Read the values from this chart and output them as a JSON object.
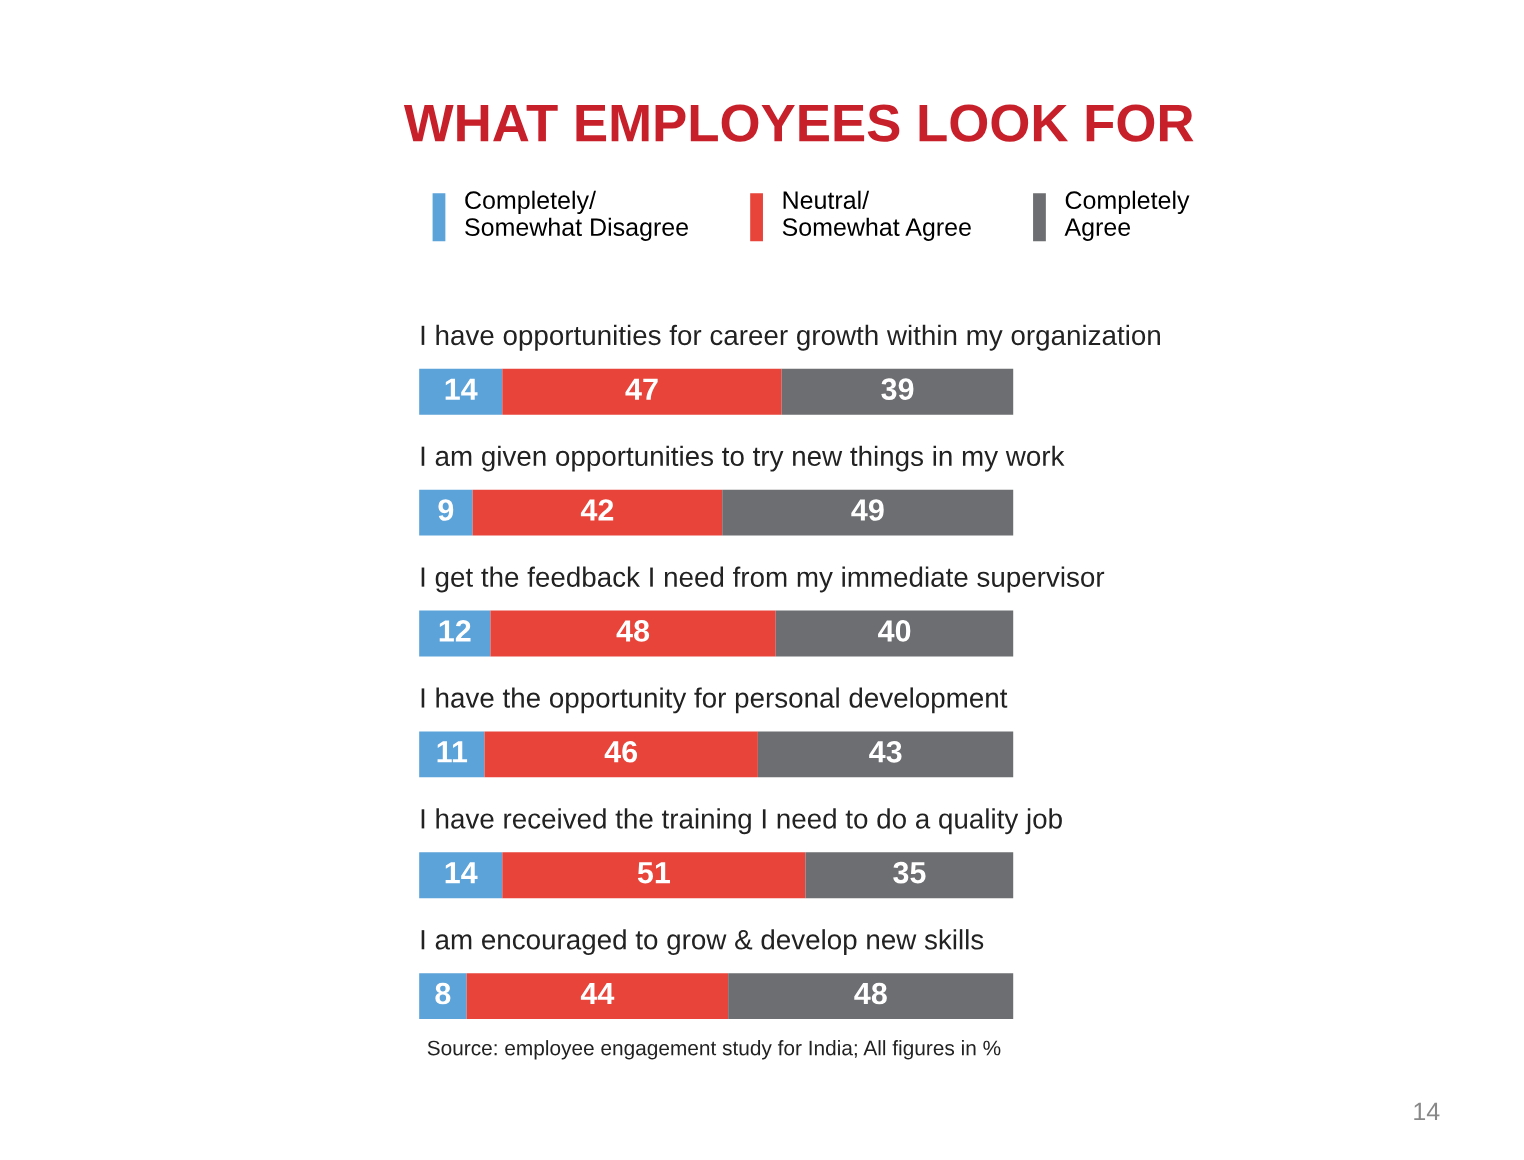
{
  "chart_data": {
    "type": "bar",
    "orientation": "horizontal",
    "stacked": true,
    "data_labels": true,
    "legend": "top",
    "title": "WHAT EMPLOYEES LOOK FOR",
    "categories": [
      "I have opportunities for career growth within my organization",
      "I am given opportunities to try new things in my work",
      "I get the feedback I need from my immediate supervisor",
      "I have the opportunity for personal development",
      "I have received the training I need to do a quality job",
      "I am encouraged to grow & develop new skills"
    ],
    "series": [
      {
        "name": "Completely/\nSomewhat Disagree",
        "color": "#5ba3d9",
        "values": [
          14,
          9,
          12,
          11,
          14,
          8
        ]
      },
      {
        "name": "Neutral/\nSomewhat Agree",
        "color": "#e8443a",
        "values": [
          47,
          42,
          48,
          46,
          51,
          44
        ]
      },
      {
        "name": "Completely\nAgree",
        "color": "#6d6e71",
        "values": [
          39,
          49,
          40,
          43,
          35,
          48
        ]
      }
    ],
    "annotations": [
      "Source: employee engagement study for India; All figures in %",
      "14"
    ]
  }
}
